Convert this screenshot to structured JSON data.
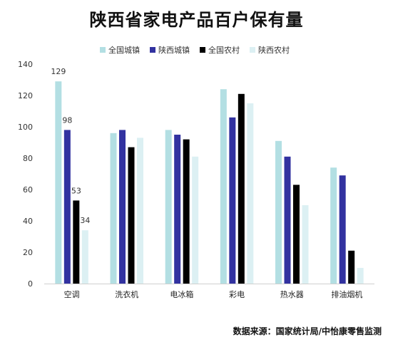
{
  "chart_data": {
    "type": "bar",
    "title": "陕西省家电产品百户保有量",
    "categories": [
      "空调",
      "洗衣机",
      "电冰箱",
      "彩电",
      "热水器",
      "排油烟机"
    ],
    "series": [
      {
        "name": "全国城镇",
        "color": "#b3dfe3",
        "values": [
          129,
          96,
          98,
          124,
          91,
          74
        ],
        "labels": [
          "129",
          null,
          null,
          null,
          null,
          null
        ]
      },
      {
        "name": "陕西城镇",
        "color": "#3232a0",
        "values": [
          98,
          98,
          95,
          106,
          81,
          69
        ],
        "labels": [
          "98",
          null,
          null,
          null,
          null,
          null
        ]
      },
      {
        "name": "全国农村",
        "color": "#000000",
        "values": [
          53,
          87,
          92,
          121,
          63,
          21
        ],
        "labels": [
          "53",
          null,
          null,
          null,
          null,
          null
        ]
      },
      {
        "name": "陕西农村",
        "color": "#dcf0f3",
        "values": [
          34,
          93,
          81,
          115,
          50,
          10
        ],
        "labels": [
          "34",
          null,
          null,
          null,
          null,
          null
        ]
      }
    ],
    "yticks": [
      "0",
      "20",
      "40",
      "60",
      "80",
      "100",
      "120",
      "140"
    ],
    "ylim": [
      0,
      140
    ],
    "grid": false,
    "legend": "top-center",
    "source": "数据来源：国家统计局/中怡康零售监测"
  }
}
